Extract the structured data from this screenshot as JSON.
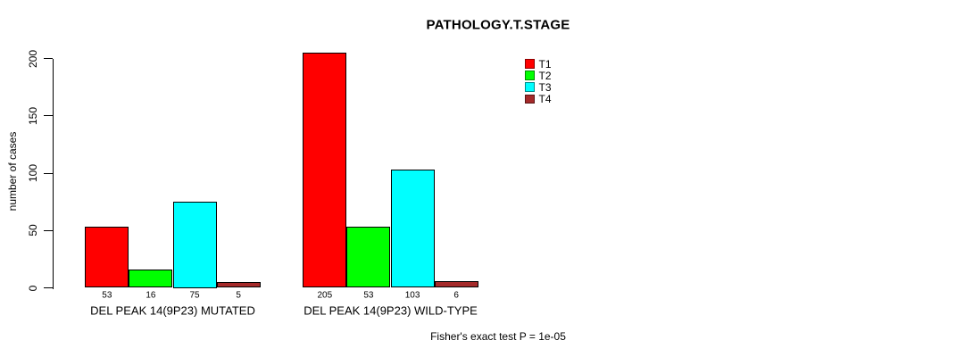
{
  "chart_data": {
    "type": "bar",
    "title": "PATHOLOGY.T.STAGE",
    "xlabel": "",
    "ylabel": "number of cases",
    "ylim": [
      0,
      200
    ],
    "yticks": [
      0,
      50,
      100,
      150,
      200
    ],
    "grid": false,
    "legend_position": "top-right",
    "categories": [
      "DEL PEAK 14(9P23) MUTATED",
      "DEL PEAK 14(9P23) WILD-TYPE"
    ],
    "series": [
      {
        "name": "T1",
        "color": "#FF0000",
        "values": [
          53,
          205
        ]
      },
      {
        "name": "T2",
        "color": "#00FF00",
        "values": [
          16,
          53
        ]
      },
      {
        "name": "T3",
        "color": "#00FFFF",
        "values": [
          75,
          103
        ]
      },
      {
        "name": "T4",
        "color": "#A52A2A",
        "values": [
          5,
          6
        ]
      }
    ],
    "bar_value_labels": {
      "shown": true,
      "mutated": [
        53,
        16,
        75,
        5
      ],
      "wild_type": [
        205,
        53,
        103,
        6
      ]
    },
    "caption": "Fisher's exact test P = 1e-05"
  }
}
